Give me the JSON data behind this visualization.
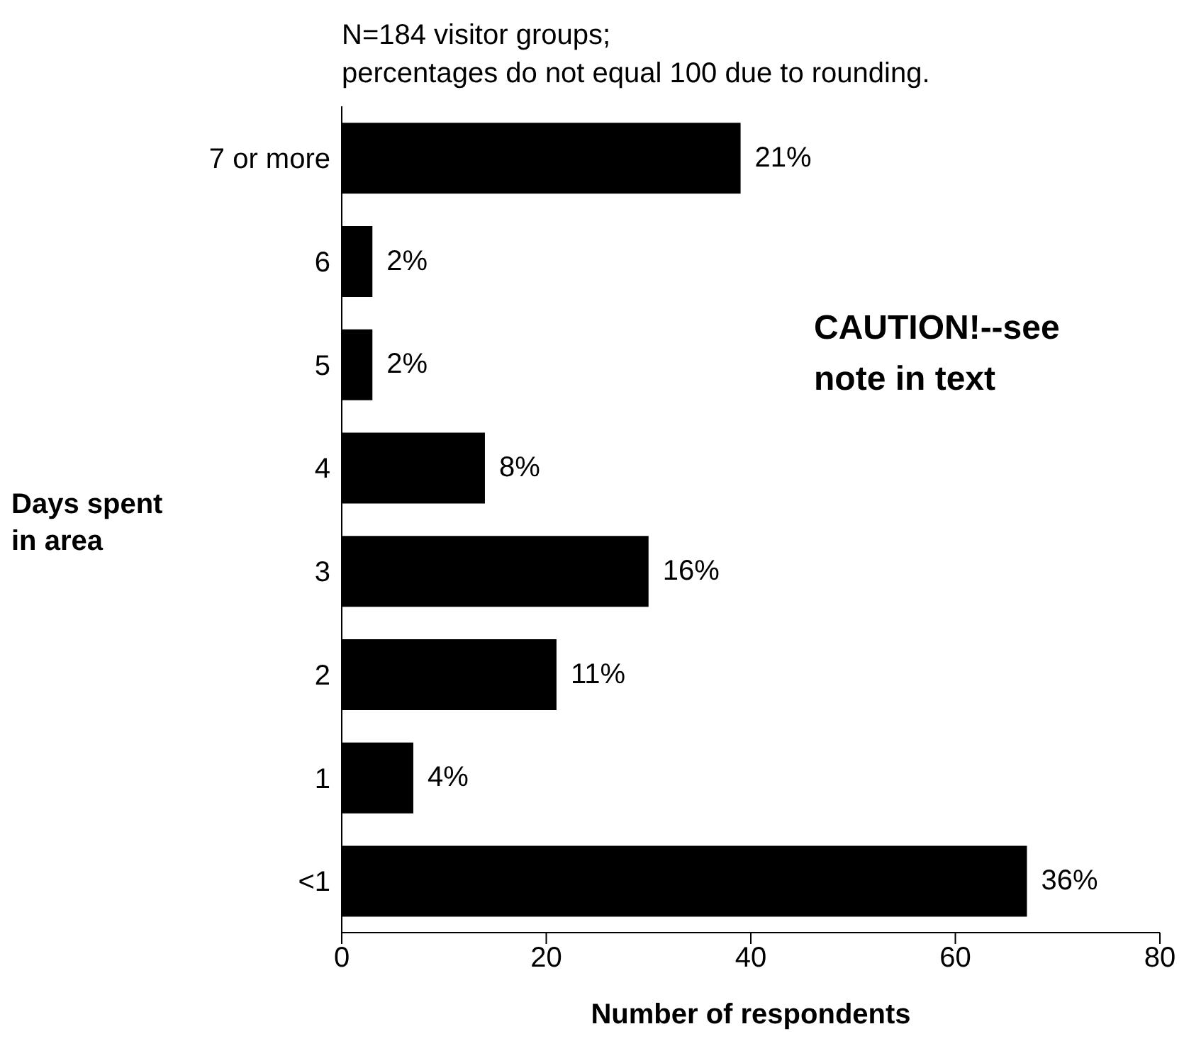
{
  "chart_data": {
    "type": "bar",
    "orientation": "horizontal",
    "categories": [
      "7 or more",
      "6",
      "5",
      "4",
      "3",
      "2",
      "1",
      "<1"
    ],
    "values": [
      39,
      3,
      3,
      14,
      30,
      21,
      7,
      67
    ],
    "color": "#000000",
    "xlim": [
      0,
      80
    ],
    "xticks": [
      0,
      20,
      40,
      60,
      80
    ],
    "xlabel": "Number of respondents",
    "ylabel": "Days spent in area",
    "annotations": [
      "N=184 visitor groups;",
      "percentages do not equal 100 due to rounding.",
      "CAUTION!--see note in text",
      {
        "text": "21%",
        "x": 39,
        "y": "7 or more"
      },
      {
        "text": "2%",
        "x": 3,
        "y": "6"
      },
      {
        "text": "2%",
        "x": 3,
        "y": "5"
      },
      {
        "text": "8%",
        "x": 14,
        "y": "4"
      },
      {
        "text": "16%",
        "x": 30,
        "y": "3"
      },
      {
        "text": "11%",
        "x": 21,
        "y": "2"
      },
      {
        "text": "4%",
        "x": 7,
        "y": "1"
      },
      {
        "text": "36%",
        "x": 67,
        "y": "<1"
      }
    ]
  }
}
